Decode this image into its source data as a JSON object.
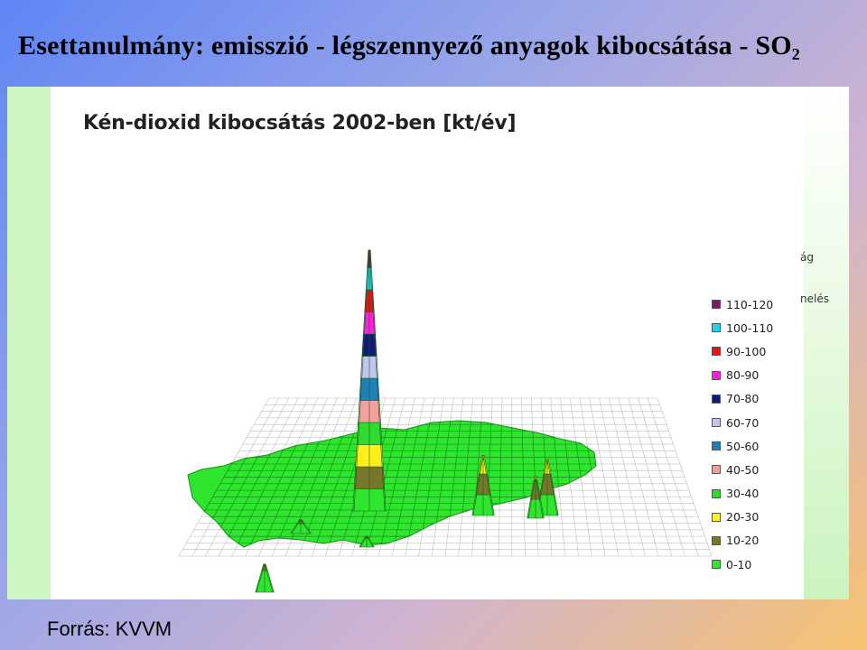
{
  "slide": {
    "title": "Esettanulmány: emisszió - légszennyező anyagok kibocsátása - SO",
    "title_sub": "2",
    "source": "Forrás: KVVM"
  },
  "fragments": {
    "f1": "ág",
    "f2": "nelés"
  },
  "chart_data": {
    "type": "surface3d",
    "title": "Kén-dioxid kibocsátás 2002-ben [kt/év]",
    "legend_placement": "right",
    "legend": [
      {
        "label": "110-120",
        "color": "#7a1a6b"
      },
      {
        "label": "100-110",
        "color": "#22d3e8"
      },
      {
        "label": "90-100",
        "color": "#e0141b"
      },
      {
        "label": "80-90",
        "color": "#ff1ee0"
      },
      {
        "label": "70-80",
        "color": "#101a78"
      },
      {
        "label": "60-70",
        "color": "#c3c5f0"
      },
      {
        "label": "50-60",
        "color": "#1f7fb8"
      },
      {
        "label": "40-50",
        "color": "#f4a0a0"
      },
      {
        "label": "30-40",
        "color": "#2fdb2f"
      },
      {
        "label": "20-30",
        "color": "#fff01a"
      },
      {
        "label": "10-20",
        "color": "#77772a"
      },
      {
        "label": "0-10",
        "color": "#2ee62e"
      }
    ],
    "peaks": [
      {
        "id": "main",
        "value": 118
      },
      {
        "id": "east-1",
        "value": 29
      },
      {
        "id": "east-2",
        "value": 27
      },
      {
        "id": "east-3",
        "value": 22
      },
      {
        "id": "west-1",
        "value": 14
      },
      {
        "id": "west-2",
        "value": 13
      },
      {
        "id": "central-1",
        "value": 12
      }
    ]
  }
}
